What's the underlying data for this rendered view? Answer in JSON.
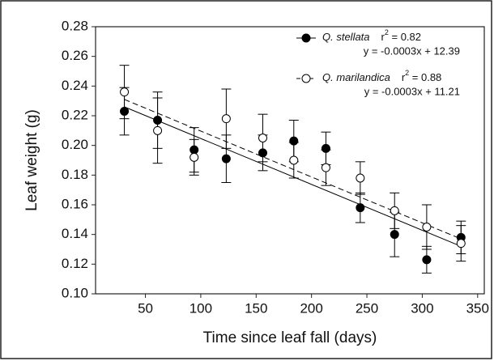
{
  "chart_data": {
    "type": "scatter",
    "xlabel": "Time since leaf fall (days)",
    "ylabel": "Leaf weight (g)",
    "xlim": [
      5,
      356
    ],
    "xticks": [
      50,
      100,
      150,
      200,
      250,
      300,
      350
    ],
    "ylim": [
      0.1,
      0.28
    ],
    "yticks": [
      {
        "value": 0.1,
        "label": "0.10"
      },
      {
        "value": 0.12,
        "label": "0.12"
      },
      {
        "value": 0.14,
        "label": "0.14"
      },
      {
        "value": 0.16,
        "label": "0.16"
      },
      {
        "value": 0.18,
        "label": "0.18"
      },
      {
        "value": 0.2,
        "label": "0.20"
      },
      {
        "value": 0.22,
        "label": "0.22"
      },
      {
        "value": 0.24,
        "label": "0.24"
      },
      {
        "value": 0.26,
        "label": "0.26"
      },
      {
        "value": 0.28,
        "label": "0.28"
      }
    ],
    "x": [
      31,
      61,
      94,
      123,
      156,
      184,
      213,
      244,
      275,
      304,
      335
    ],
    "series": [
      {
        "name": "Q. stellata",
        "color": "#000000",
        "marker": "filled",
        "line_style": "solid",
        "values": [
          0.223,
          0.217,
          0.197,
          0.191,
          0.195,
          0.203,
          0.198,
          0.158,
          0.14,
          0.123,
          0.138
        ],
        "errors": [
          0.016,
          0.019,
          0.015,
          0.016,
          0.012,
          0.014,
          0.011,
          0.01,
          0.015,
          0.009,
          0.011
        ],
        "fit": {
          "x": [
            31,
            335
          ],
          "y": [
            0.226,
            0.132
          ]
        },
        "stat_symbol": "r",
        "stat_exponent": "2",
        "stat_value": " = 0.82",
        "equation": "y = -0.0003x + 12.39"
      },
      {
        "name": "Q. marilandica",
        "color": "#000000",
        "marker": "open",
        "line_style": "dashed",
        "values": [
          0.236,
          0.21,
          0.192,
          0.218,
          0.205,
          0.19,
          0.185,
          0.178,
          0.156,
          0.145,
          0.134
        ],
        "errors": [
          0.018,
          0.022,
          0.012,
          0.02,
          0.016,
          0.012,
          0.012,
          0.011,
          0.012,
          0.015,
          0.012
        ],
        "fit": {
          "x": [
            31,
            335
          ],
          "y": [
            0.231,
            0.137
          ]
        },
        "stat_symbol": "r",
        "stat_exponent": "2",
        "stat_value": " = 0.88",
        "equation": "y = -0.0003x + 11.21"
      }
    ]
  }
}
